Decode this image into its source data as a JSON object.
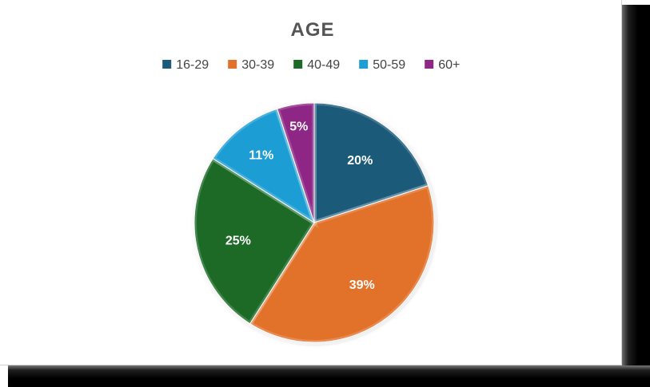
{
  "chart_data": {
    "type": "pie",
    "title": "AGE",
    "categories": [
      "16-29",
      "30-39",
      "40-49",
      "50-59",
      "60+"
    ],
    "values": [
      20,
      39,
      25,
      11,
      5
    ],
    "labels": [
      "20%",
      "39%",
      "25%",
      "11%",
      "5%"
    ],
    "colors": [
      "#1b5a7a",
      "#e2712b",
      "#1a6b26",
      "#1e9ed4",
      "#8e2786"
    ],
    "legend_position": "top",
    "start_angle_deg": 0,
    "direction": "clockwise"
  }
}
